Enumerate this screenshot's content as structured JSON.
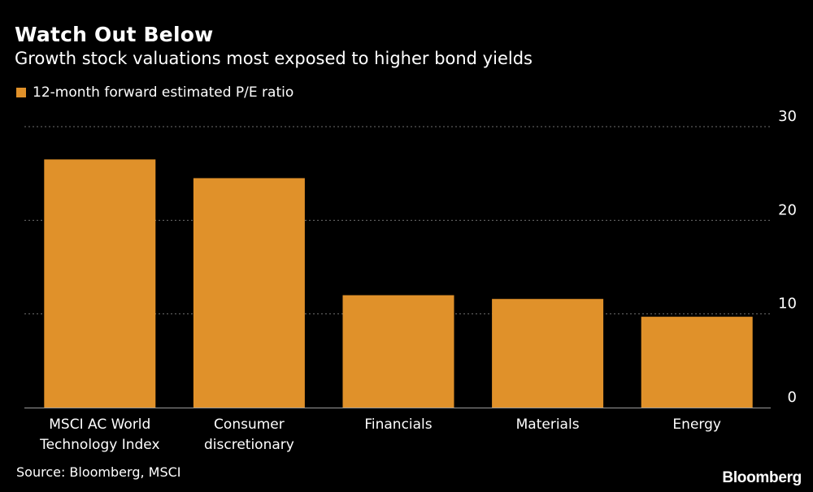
{
  "header": {
    "title": "Watch Out Below",
    "subtitle": "Growth stock valuations most exposed to higher bond yields"
  },
  "legend": {
    "label": "12-month forward estimated P/E ratio"
  },
  "footer": {
    "source": "Source: Bloomberg, MSCI",
    "brand": "Bloomberg"
  },
  "colors": {
    "bar": "#e0912a",
    "background": "#000000",
    "grid": "#6e6e6e",
    "text": "#ffffff"
  },
  "chart_data": {
    "type": "bar",
    "title": "Watch Out Below",
    "subtitle": "Growth stock valuations most exposed to higher bond yields",
    "categories": [
      [
        "MSCI AC World",
        "Technology Index"
      ],
      [
        "Consumer",
        "discretionary"
      ],
      [
        "Financials"
      ],
      [
        "Materials"
      ],
      [
        "Energy"
      ]
    ],
    "series": [
      {
        "name": "12-month forward estimated P/E ratio",
        "values": [
          26.5,
          24.5,
          12.0,
          11.6,
          9.7
        ]
      }
    ],
    "ylim": [
      0,
      30
    ],
    "yticks": [
      0,
      10,
      20,
      30
    ],
    "xlabel": "",
    "ylabel": "",
    "grid": true,
    "y_axis_position": "right",
    "legend_position": "top-left"
  }
}
